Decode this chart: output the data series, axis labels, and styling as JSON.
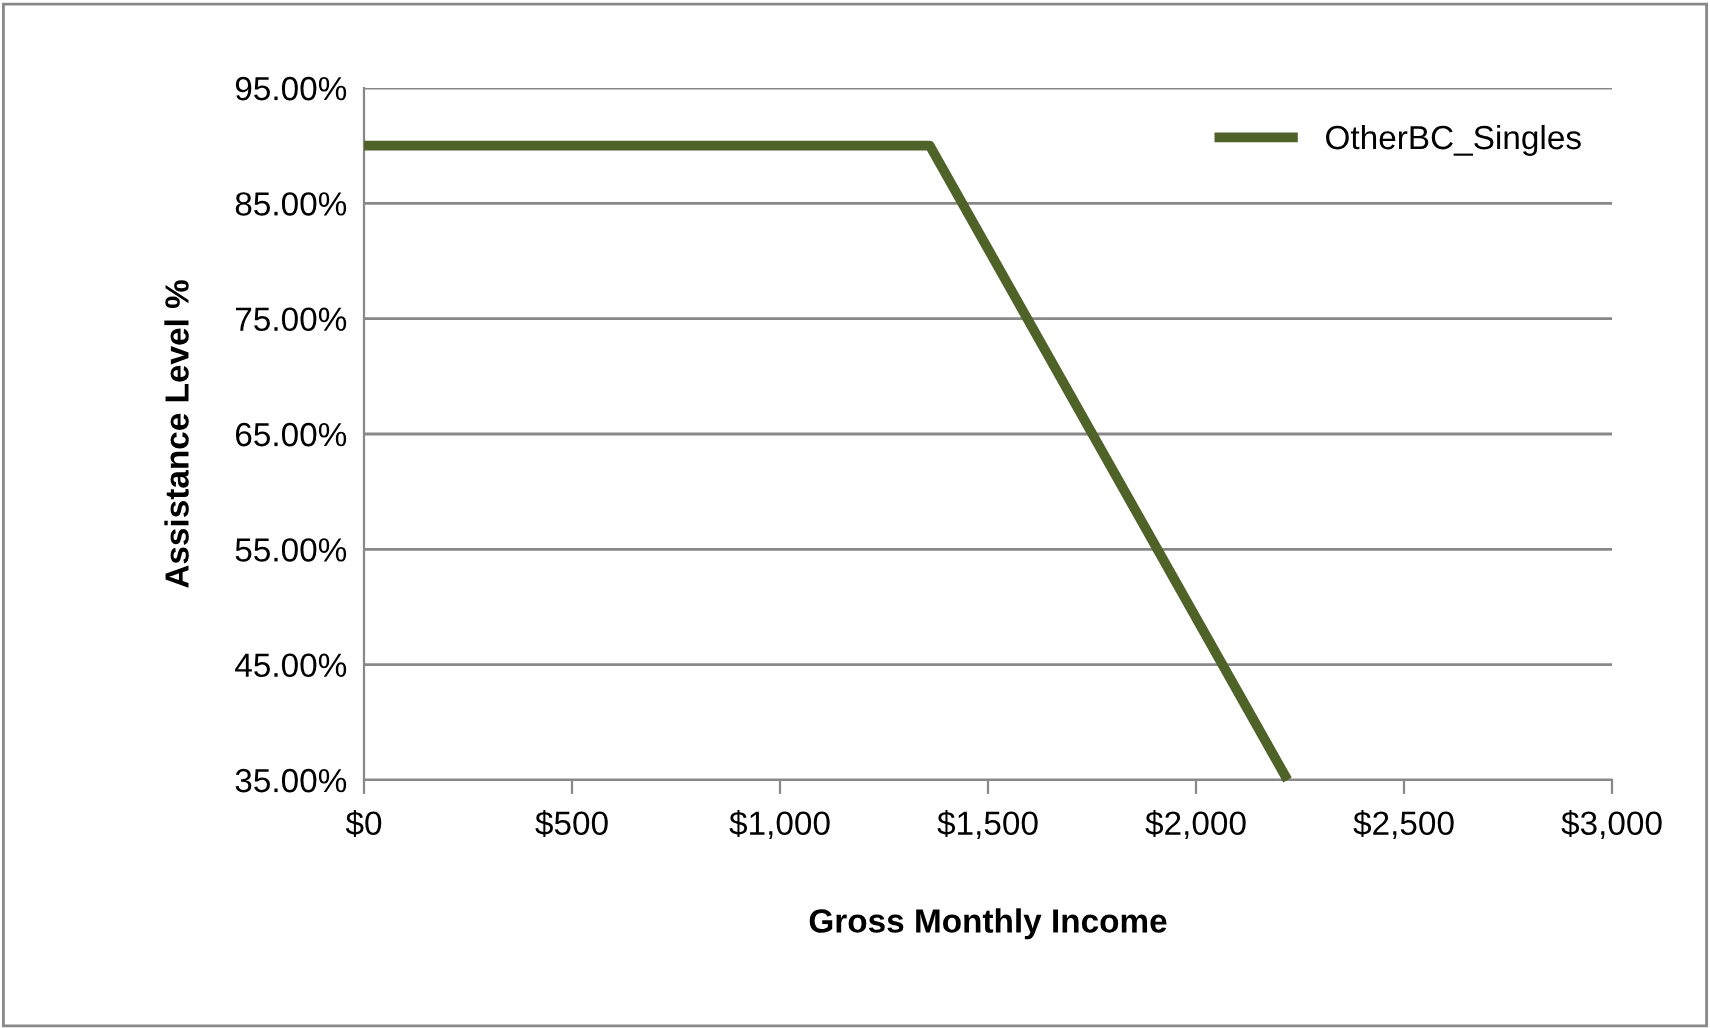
{
  "chart_data": {
    "type": "line",
    "xlabel": "Gross Monthly Income",
    "ylabel": "Assistance Level %",
    "series": [
      {
        "name": "OtherBC_Singles",
        "color": "#4f6228",
        "x": [
          0,
          1360,
          2220
        ],
        "values": [
          90,
          90,
          35
        ]
      }
    ],
    "xlim": [
      0,
      3000
    ],
    "xticks": [
      {
        "value": 0,
        "label": "$0"
      },
      {
        "value": 500,
        "label": "$500"
      },
      {
        "value": 1000,
        "label": "$1,000"
      },
      {
        "value": 1500,
        "label": "$1,500"
      },
      {
        "value": 2000,
        "label": "$2,000"
      },
      {
        "value": 2500,
        "label": "$2,500"
      },
      {
        "value": 3000,
        "label": "$3,000"
      }
    ],
    "ylim": [
      35,
      95
    ],
    "yticks": [
      {
        "value": 35,
        "label": "35.00%"
      },
      {
        "value": 45,
        "label": "45.00%"
      },
      {
        "value": 55,
        "label": "55.00%"
      },
      {
        "value": 65,
        "label": "65.00%"
      },
      {
        "value": 75,
        "label": "75.00%"
      },
      {
        "value": 85,
        "label": "85.00%"
      },
      {
        "value": 95,
        "label": "95.00%"
      }
    ],
    "grid": "y",
    "legend": "top right",
    "marker": "none",
    "line_style": "solid"
  }
}
